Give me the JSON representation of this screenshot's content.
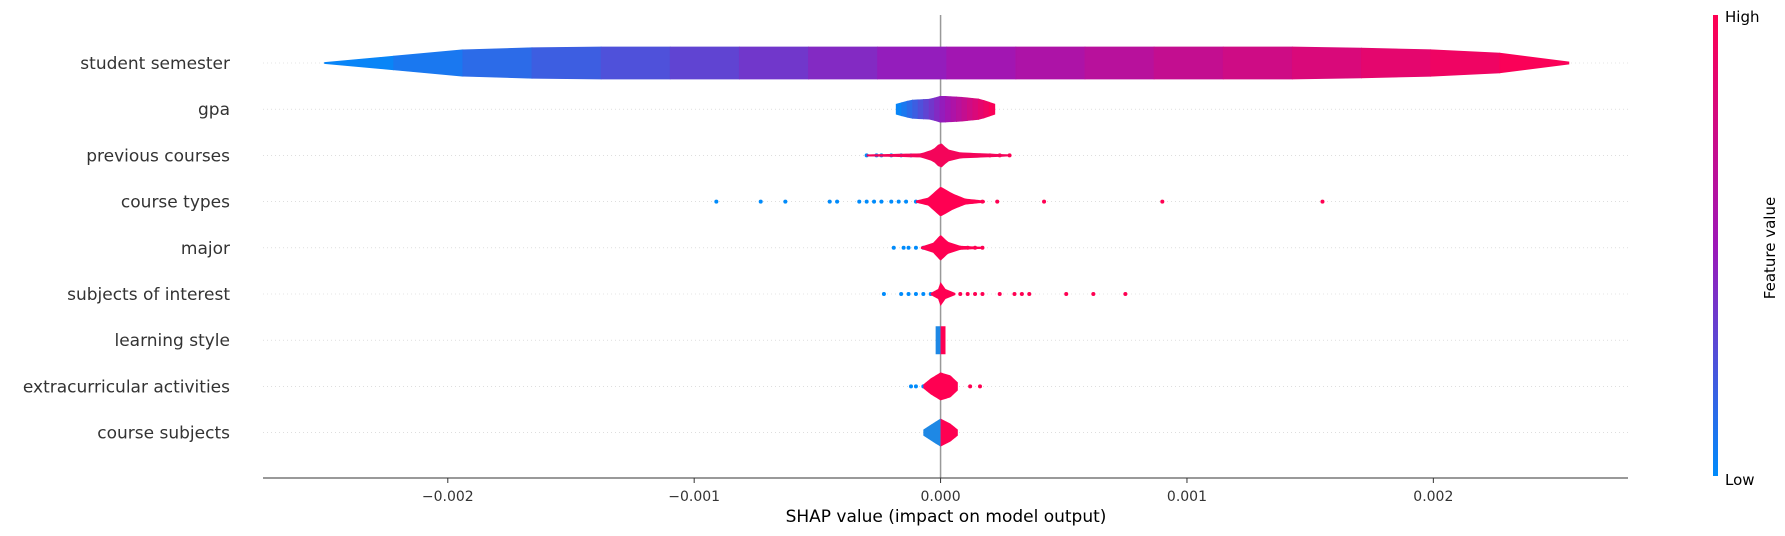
{
  "chart_data": {
    "type": "violin",
    "xlabel": "SHAP value (impact on model output)",
    "xlim": [
      -0.00275,
      0.00279
    ],
    "xticks": [
      {
        "value": -0.002,
        "label": "−0.002"
      },
      {
        "value": -0.001,
        "label": "−0.001"
      },
      {
        "value": 0,
        "label": "0.000"
      },
      {
        "value": 0.001,
        "label": "0.001"
      },
      {
        "value": 0.002,
        "label": "0.002"
      }
    ],
    "colorbar": {
      "label": "Feature value",
      "high_label": "High",
      "low_label": "Low",
      "low_color": "#008bfb",
      "high_color": "#ff0052"
    },
    "features": [
      {
        "name": "student semester",
        "min": -0.0025,
        "max": 0.00255,
        "profile": [
          [
            -0.0025,
            0.5
          ],
          [
            -0.0019,
            14
          ],
          [
            -0.0015,
            16
          ],
          [
            -0.0005,
            16
          ],
          [
            0.0005,
            16
          ],
          [
            0.0015,
            16
          ],
          [
            0.0022,
            12
          ],
          [
            0.00255,
            1
          ]
        ],
        "gradient": true,
        "points": []
      },
      {
        "name": "gpa",
        "min": -0.00018,
        "max": 0.00022,
        "profile": [
          [
            -0.00018,
            5
          ],
          [
            -0.00012,
            9
          ],
          [
            -4e-05,
            10
          ],
          [
            0,
            13
          ],
          [
            8e-05,
            12
          ],
          [
            0.00016,
            10
          ],
          [
            0.00022,
            5
          ]
        ],
        "gradient": true,
        "points": []
      },
      {
        "name": "previous courses",
        "min": -0.0003,
        "max": 0.00028,
        "profile": [
          [
            -0.0003,
            1
          ],
          [
            -8e-05,
            2
          ],
          [
            -3e-05,
            6
          ],
          [
            0,
            13
          ],
          [
            3e-05,
            6
          ],
          [
            8e-05,
            3
          ],
          [
            0.00028,
            1
          ]
        ],
        "color": "#f4055a",
        "points": [
          [
            -0.0003,
            0.0
          ],
          [
            -0.00026,
            0.0
          ],
          [
            -0.00024,
            0.0
          ],
          [
            -0.0002,
            0.0
          ],
          [
            -0.00016,
            0.0
          ],
          [
            -0.00012,
            0.0
          ],
          [
            -8e-05,
            0.0
          ],
          [
            8e-05,
            0.0
          ],
          [
            0.00012,
            1.0
          ],
          [
            0.00016,
            1.0
          ],
          [
            0.0002,
            1.0
          ],
          [
            0.00024,
            1.0
          ],
          [
            0.00028,
            1.0
          ]
        ]
      },
      {
        "name": "course types",
        "min": -0.00091,
        "max": 0.00155,
        "profile": [
          [
            -0.0001,
            1
          ],
          [
            -5e-05,
            4
          ],
          [
            0,
            15
          ],
          [
            5e-05,
            8
          ],
          [
            0.0001,
            3
          ],
          [
            0.00018,
            1
          ]
        ],
        "color": "#ff0052",
        "points": [
          [
            -0.00091,
            0.0
          ],
          [
            -0.00073,
            0.0
          ],
          [
            -0.00063,
            0.0
          ],
          [
            -0.00045,
            0.0
          ],
          [
            -0.00042,
            0.0
          ],
          [
            -0.00033,
            0.0
          ],
          [
            -0.0003,
            0.0
          ],
          [
            -0.00027,
            0.0
          ],
          [
            -0.00024,
            0.0
          ],
          [
            -0.0002,
            0.0
          ],
          [
            -0.00017,
            0.0
          ],
          [
            -0.00014,
            0.0
          ],
          [
            -0.0001,
            0.0
          ],
          [
            0.00013,
            1.0
          ],
          [
            0.00017,
            1.0
          ],
          [
            0.00023,
            1.0
          ],
          [
            0.00042,
            1.0
          ],
          [
            0.0009,
            1.0
          ],
          [
            0.00155,
            1.0
          ]
        ]
      },
      {
        "name": "major",
        "min": -0.00019,
        "max": 0.00017,
        "profile": [
          [
            -8e-05,
            1
          ],
          [
            -3e-05,
            5
          ],
          [
            0,
            13
          ],
          [
            3e-05,
            6
          ],
          [
            8e-05,
            2
          ],
          [
            0.00017,
            1
          ]
        ],
        "color": "#ff0052",
        "points": [
          [
            -0.00019,
            0.0
          ],
          [
            -0.00015,
            0.0
          ],
          [
            -0.00013,
            0.0
          ],
          [
            -0.0001,
            0.0
          ],
          [
            -7e-05,
            0.0
          ],
          [
            -5e-05,
            0.0
          ],
          [
            5e-05,
            1.0
          ],
          [
            8e-05,
            1.0
          ],
          [
            0.00011,
            1.0
          ],
          [
            0.00014,
            1.0
          ],
          [
            0.00017,
            1.0
          ]
        ]
      },
      {
        "name": "subjects of interest",
        "min": -0.00023,
        "max": 0.00075,
        "profile": [
          [
            -4e-05,
            1
          ],
          [
            -1e-05,
            5
          ],
          [
            0,
            12
          ],
          [
            2e-05,
            5
          ],
          [
            6e-05,
            1
          ]
        ],
        "color": "#ff0052",
        "points": [
          [
            -0.00023,
            0.0
          ],
          [
            -0.00016,
            0.0
          ],
          [
            -0.00013,
            0.0
          ],
          [
            -0.0001,
            0.0
          ],
          [
            -7e-05,
            0.0
          ],
          [
            -4e-05,
            0.0
          ],
          [
            8e-05,
            1.0
          ],
          [
            0.00011,
            1.0
          ],
          [
            0.00014,
            1.0
          ],
          [
            0.00017,
            1.0
          ],
          [
            0.00024,
            1.0
          ],
          [
            0.0003,
            1.0
          ],
          [
            0.00033,
            1.0
          ],
          [
            0.00036,
            1.0
          ],
          [
            0.00051,
            1.0
          ],
          [
            0.00062,
            1.0
          ],
          [
            0.00075,
            1.0
          ]
        ]
      },
      {
        "name": "learning style",
        "min": -2e-05,
        "max": 2e-05,
        "profile": [
          [
            -2e-05,
            14
          ],
          [
            2e-05,
            14
          ]
        ],
        "split": true,
        "points": []
      },
      {
        "name": "extracurricular activities",
        "min": -0.00012,
        "max": 0.00016,
        "profile": [
          [
            -7e-05,
            2
          ],
          [
            -4e-05,
            8
          ],
          [
            0,
            14
          ],
          [
            4e-05,
            11
          ],
          [
            7e-05,
            4
          ]
        ],
        "color": "#ff0052",
        "points": [
          [
            -0.00012,
            0.0
          ],
          [
            -0.0001,
            0.0
          ],
          [
            -7e-05,
            0.0
          ],
          [
            0.00012,
            1.0
          ],
          [
            0.00016,
            1.0
          ]
        ]
      },
      {
        "name": "course subjects",
        "min": -7e-05,
        "max": 7e-05,
        "profile": [
          [
            -7e-05,
            3
          ],
          [
            -2e-05,
            11
          ],
          [
            0,
            14
          ],
          [
            4e-05,
            9
          ],
          [
            7e-05,
            3
          ]
        ],
        "split": true,
        "points": []
      }
    ]
  }
}
